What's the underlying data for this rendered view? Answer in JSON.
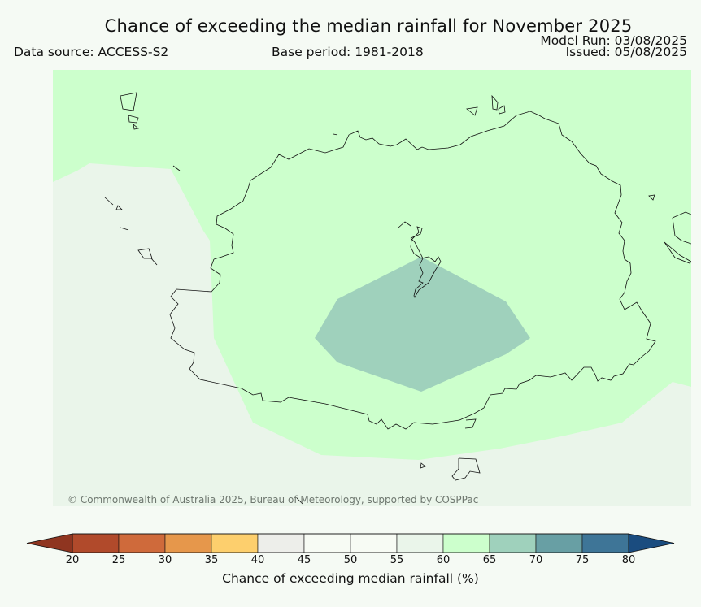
{
  "header": {
    "title": "Chance of exceeding the median rainfall for November 2025",
    "data_source": "Data source: ACCESS-S2",
    "base_period": "Base period: 1981-2018",
    "model_run": "Model Run: 03/08/2025",
    "issued": "Issued: 05/08/2025"
  },
  "map": {
    "copyright": "© Commonwealth of Australia 2025, Bureau of Meteorology, supported by COSPPac",
    "regions": [
      {
        "name": "outer-lower-area",
        "category": "50-55",
        "color": "#eaf5ea"
      },
      {
        "name": "main-area",
        "category": "60-65",
        "color": "#ccffcc"
      },
      {
        "name": "central-area",
        "category": "65-70",
        "color": "#9fd1bc"
      }
    ]
  },
  "colorbar": {
    "label": "Chance of exceeding median rainfall (%)",
    "ticks": [
      "20",
      "25",
      "30",
      "35",
      "40",
      "45",
      "50",
      "55",
      "60",
      "65",
      "70",
      "75",
      "80"
    ],
    "colors": [
      "#b14a2b",
      "#cf6a3b",
      "#e6974b",
      "#fdcf6d",
      "#edeeea",
      "#f7fbf4",
      "#f7fbf4",
      "#eaf5ea",
      "#ccffcc",
      "#9fd1bc",
      "#689fa4",
      "#3e7597"
    ],
    "under_color": "#8f3520",
    "over_color": "#1a4c7f"
  }
}
